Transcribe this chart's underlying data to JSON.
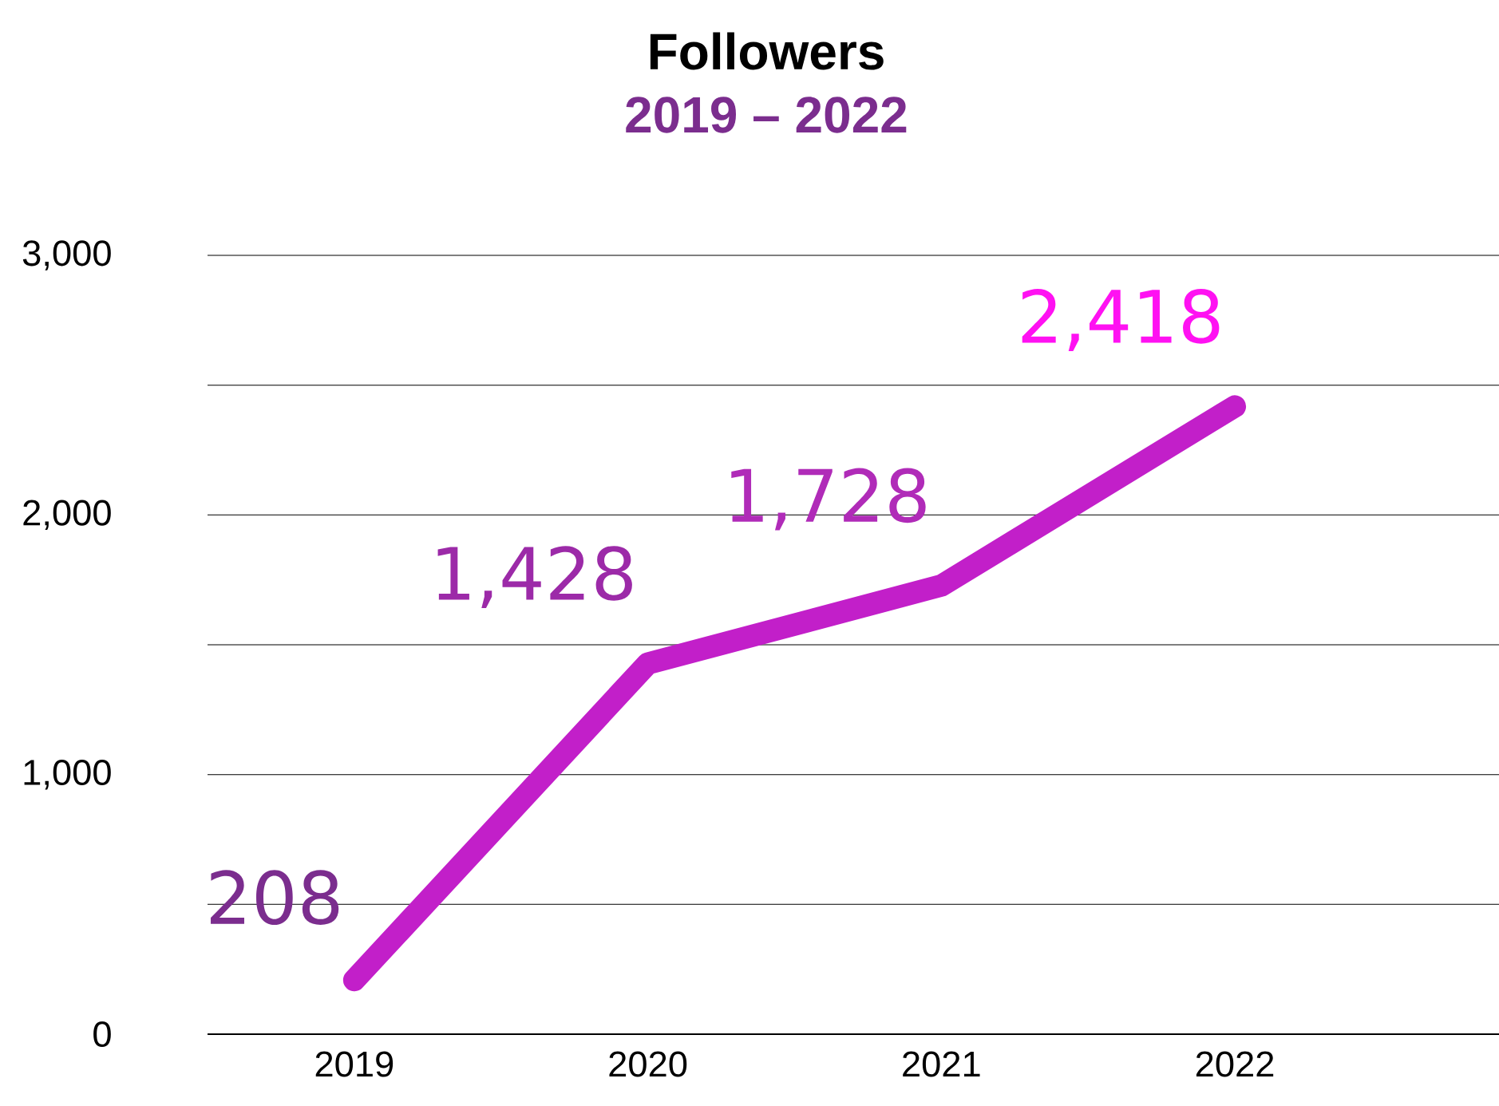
{
  "chart_data": {
    "type": "line",
    "title": "Followers",
    "subtitle": "2019 – 2022",
    "categories": [
      "2019",
      "2020",
      "2021",
      "2022"
    ],
    "series": [
      {
        "color": "#c21fc9",
        "values": [
          208,
          1428,
          1728,
          2418
        ],
        "value_labels": [
          "208",
          "1,428",
          "1,728",
          "2,418"
        ],
        "colors": [
          "#7b2d8e",
          "#9c2aa8",
          "#b02bb8",
          "#ff11f2"
        ]
      }
    ],
    "ylim": [
      0,
      3000
    ],
    "yticks": [
      {
        "value": 0,
        "label": "0"
      },
      {
        "value": 500,
        "label": null
      },
      {
        "value": 1000,
        "label": "1,000"
      },
      {
        "value": 1500,
        "label": null
      },
      {
        "value": 2000,
        "label": "2,000"
      },
      {
        "value": 2500,
        "label": null
      },
      {
        "value": 3000,
        "label": "3,000"
      }
    ],
    "grid": "y",
    "marker": "none",
    "line_style": "solid"
  }
}
